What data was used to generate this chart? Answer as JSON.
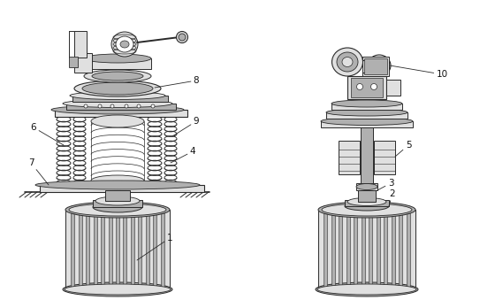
{
  "bg_color": "#ffffff",
  "lc": "#2a2a2a",
  "gc": "#c8c8c8",
  "lgc": "#e0e0e0",
  "mgc": "#b0b0b0",
  "dgc": "#888888",
  "figsize": [
    5.6,
    3.39
  ],
  "dpi": 100,
  "label_fs": 7.5,
  "border_color": "#555555"
}
